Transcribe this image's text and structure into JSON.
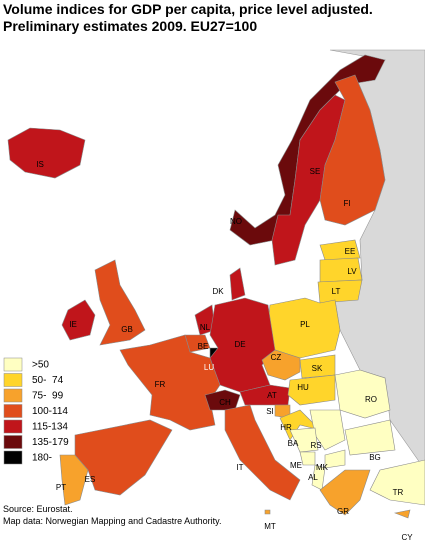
{
  "title": [
    "Volume indices for GDP per capita, price level adjusted.",
    "Preliminary estimates 2009. EU27=100"
  ],
  "legend": [
    {
      "label": ">50",
      "color": "#ffffc2"
    },
    {
      "label": "50-  74",
      "color": "#ffd52b"
    },
    {
      "label": "75-  99",
      "color": "#f7a22c"
    },
    {
      "label": "100-114",
      "color": "#e04d1c"
    },
    {
      "label": "115-134",
      "color": "#c0151b"
    },
    {
      "label": "135-179",
      "color": "#6b0a0c"
    },
    {
      "label": "180-",
      "color": "#000000"
    }
  ],
  "countries": [
    {
      "label": "IS",
      "color": "#c0151b"
    },
    {
      "label": "NO",
      "color": "#6b0a0c"
    },
    {
      "label": "SE",
      "color": "#c0151b"
    },
    {
      "label": "FI",
      "color": "#e04d1c"
    },
    {
      "label": "DK",
      "color": "#c0151b"
    },
    {
      "label": "EE",
      "color": "#ffd52b"
    },
    {
      "label": "LV",
      "color": "#ffd52b"
    },
    {
      "label": "LT",
      "color": "#ffd52b"
    },
    {
      "label": "PL",
      "color": "#ffd52b"
    },
    {
      "label": "IE",
      "color": "#c0151b"
    },
    {
      "label": "GB",
      "color": "#e04d1c"
    },
    {
      "label": "NL",
      "color": "#c0151b"
    },
    {
      "label": "BE",
      "color": "#e04d1c"
    },
    {
      "label": "LU",
      "color": "#000000"
    },
    {
      "label": "DE",
      "color": "#c0151b"
    },
    {
      "label": "FR",
      "color": "#e04d1c"
    },
    {
      "label": "CH",
      "color": "#6b0a0c"
    },
    {
      "label": "AT",
      "color": "#c0151b"
    },
    {
      "label": "CZ",
      "color": "#f7a22c"
    },
    {
      "label": "SK",
      "color": "#ffd52b"
    },
    {
      "label": "HU",
      "color": "#ffd52b"
    },
    {
      "label": "SI",
      "color": "#f7a22c"
    },
    {
      "label": "HR",
      "color": "#ffd52b"
    },
    {
      "label": "RO",
      "color": "#ffffc2"
    },
    {
      "label": "RS",
      "color": "#ffffc2"
    },
    {
      "label": "BA",
      "color": "#ffffc2"
    },
    {
      "label": "ME",
      "color": "#ffffc2"
    },
    {
      "label": "MK",
      "color": "#ffffc2"
    },
    {
      "label": "AL",
      "color": "#ffffc2"
    },
    {
      "label": "BG",
      "color": "#ffffc2"
    },
    {
      "label": "GR",
      "color": "#f7a22c"
    },
    {
      "label": "TR",
      "color": "#ffffc2"
    },
    {
      "label": "CY",
      "color": "#f7a22c"
    },
    {
      "label": "ES",
      "color": "#e04d1c"
    },
    {
      "label": "PT",
      "color": "#f7a22c"
    },
    {
      "label": "IT",
      "color": "#e04d1c"
    },
    {
      "label": "MT",
      "color": "#f7a22c"
    }
  ],
  "source": [
    "Source: Eurostat.",
    "Map data: Norwegian Mapping and Cadastre Authority."
  ]
}
